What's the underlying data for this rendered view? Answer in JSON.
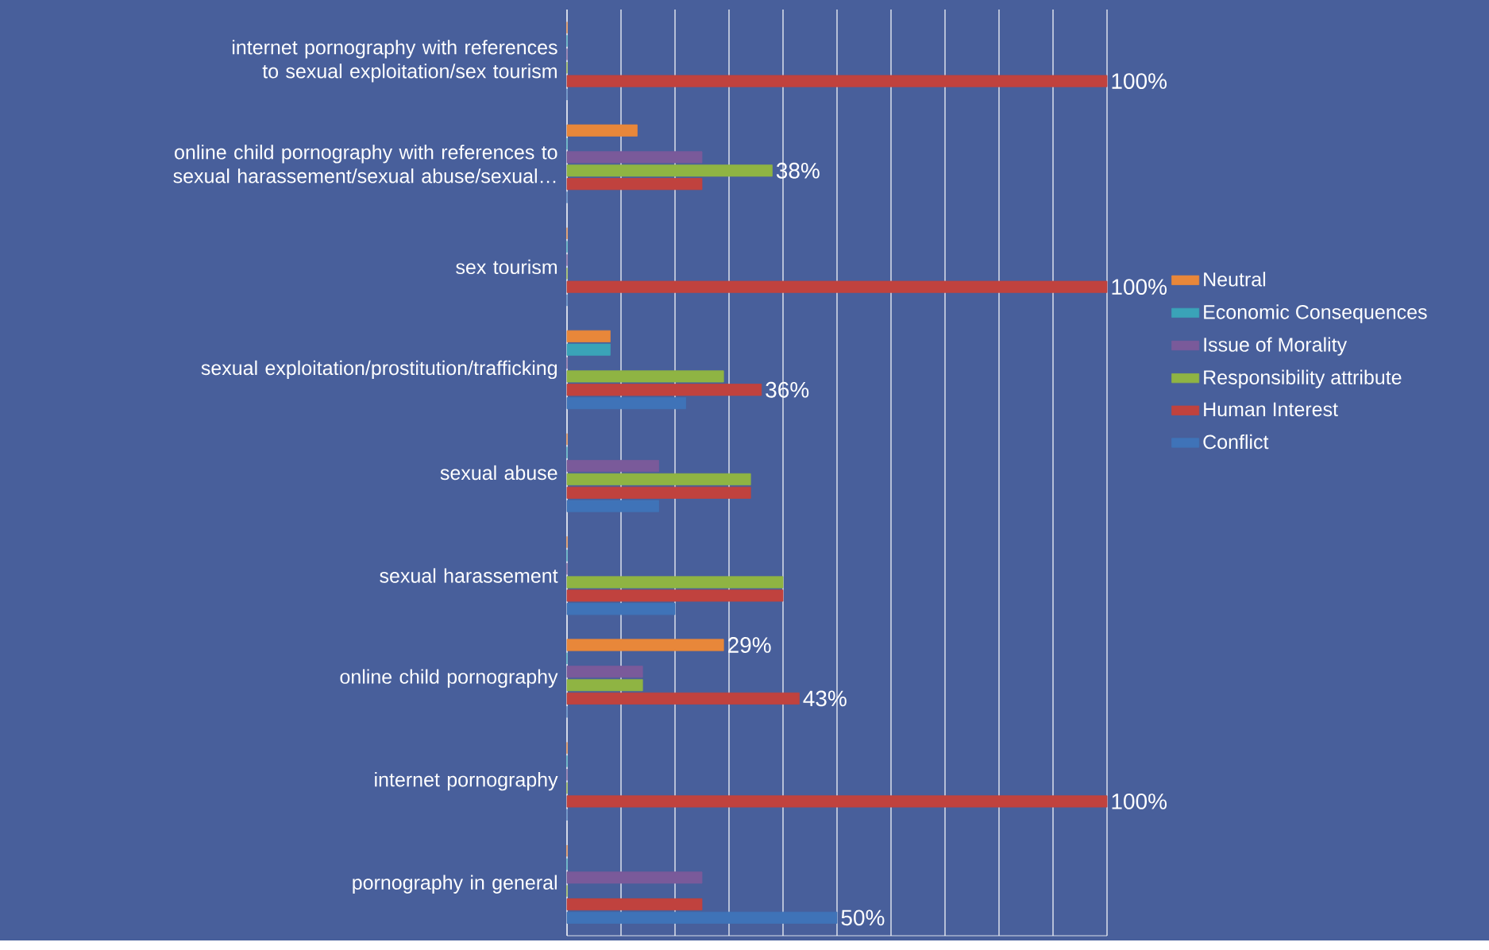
{
  "chart_data": {
    "type": "bar",
    "orientation": "horizontal",
    "categories": [
      "internet pornography with references to sexual exploitation/sex tourism",
      "online child pornography with references to sexual harassement/sexual abuse/sexual…",
      "sex tourism",
      "sexual exploitation/prostitution/trafficking",
      "sexual abuse",
      "sexual harassement",
      "online child pornography",
      "internet pornography",
      "pornography in general"
    ],
    "series": [
      {
        "name": "Neutral",
        "color": "#e8873a",
        "values": [
          0,
          13,
          0,
          8,
          0,
          0,
          29,
          0,
          0
        ],
        "value_labels": [
          null,
          null,
          null,
          null,
          null,
          null,
          "29%",
          null,
          null
        ]
      },
      {
        "name": "Economic Consequences",
        "color": "#3aa3b8",
        "values": [
          0,
          0,
          0,
          8,
          0,
          0,
          0,
          0,
          0
        ]
      },
      {
        "name": "Issue of Morality",
        "color": "#7a5a9a",
        "values": [
          0,
          25,
          0,
          0,
          17,
          0,
          14,
          0,
          25
        ]
      },
      {
        "name": "Responsibility attribute",
        "color": "#8fb443",
        "values": [
          0,
          38,
          0,
          29,
          34,
          40,
          14,
          0,
          0
        ],
        "value_labels": [
          null,
          "38%",
          null,
          null,
          null,
          null,
          null,
          null,
          null
        ]
      },
      {
        "name": "Human Interest",
        "color": "#c0423e",
        "values": [
          100,
          25,
          100,
          36,
          34,
          40,
          43,
          100,
          25
        ],
        "value_labels": [
          "100%",
          null,
          "100%",
          "36%",
          null,
          null,
          "43%",
          "100%",
          null
        ]
      },
      {
        "name": "Conflict",
        "color": "#3f73b8",
        "values": [
          0,
          0,
          0,
          22,
          17,
          20,
          0,
          0,
          50
        ],
        "value_labels": [
          null,
          null,
          null,
          null,
          null,
          null,
          null,
          null,
          "50%"
        ]
      }
    ],
    "xlim": [
      0,
      100
    ],
    "xticks": [
      {
        "value": 0,
        "label": null
      },
      {
        "value": 10,
        "label": null
      },
      {
        "value": 20,
        "label": null
      },
      {
        "value": 30,
        "label": null
      },
      {
        "value": 40,
        "label": null
      },
      {
        "value": 50,
        "label": null
      },
      {
        "value": 60,
        "label": null
      },
      {
        "value": 70,
        "label": null
      },
      {
        "value": 80,
        "label": null
      },
      {
        "value": 90,
        "label": null
      },
      {
        "value": 100,
        "label": null
      }
    ],
    "grid": "x",
    "legend": "right"
  }
}
